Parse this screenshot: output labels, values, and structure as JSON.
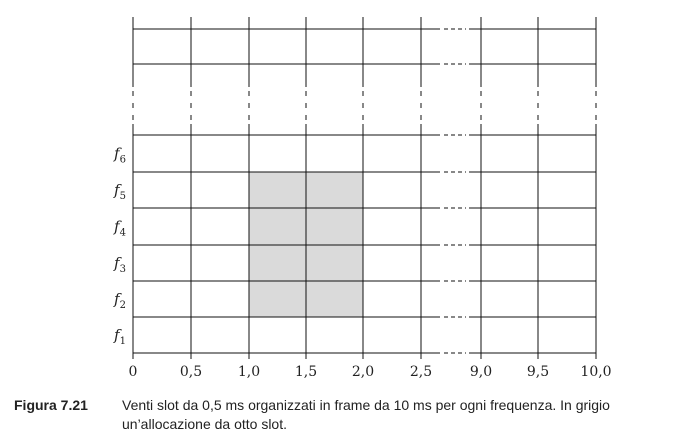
{
  "figure": {
    "frequencies": [
      {
        "base": "f",
        "sub": "6"
      },
      {
        "base": "f",
        "sub": "5"
      },
      {
        "base": "f",
        "sub": "4"
      },
      {
        "base": "f",
        "sub": "3"
      },
      {
        "base": "f",
        "sub": "2"
      },
      {
        "base": "f",
        "sub": "1"
      }
    ],
    "x_ticks": [
      "0",
      "0,5",
      "1,0",
      "1,5",
      "2,0",
      "2,5",
      "9,0",
      "9,5",
      "10,0"
    ],
    "highlight": {
      "from_time": "1,0",
      "to_time": "2,0",
      "frequencies": [
        "f2",
        "f3",
        "f4",
        "f5"
      ],
      "color": "#dadada"
    },
    "line_color": "#111111"
  },
  "caption": {
    "label": "Figura 7.21",
    "text": "Venti slot da 0,5 ms organizzati in frame da 10 ms per ogni frequenza. In grigio un’allocazione da otto slot."
  }
}
